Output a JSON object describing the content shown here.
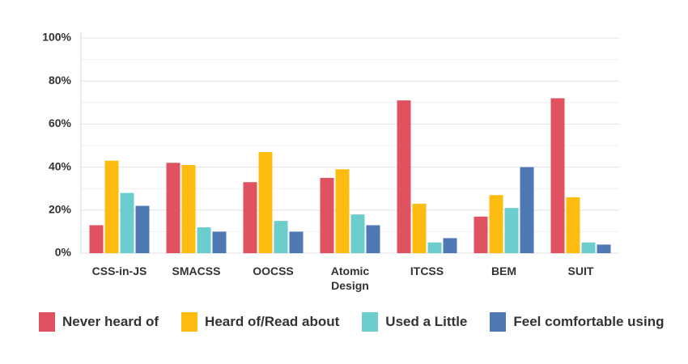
{
  "chart_data": {
    "type": "bar",
    "categories": [
      "CSS-in-JS",
      "SMACSS",
      "OOCSS",
      "Atomic Design",
      "ITCSS",
      "BEM",
      "SUIT"
    ],
    "series": [
      {
        "name": "Never heard of",
        "color": "#e05260",
        "values": [
          13,
          42,
          33,
          35,
          71,
          17,
          72
        ]
      },
      {
        "name": "Heard of/Read about",
        "color": "#fdbd10",
        "values": [
          43,
          41,
          47,
          39,
          23,
          27,
          26
        ]
      },
      {
        "name": "Used a Little",
        "color": "#6bcdcd",
        "values": [
          28,
          12,
          15,
          18,
          5,
          21,
          5
        ]
      },
      {
        "name": "Feel comfortable using",
        "color": "#4f79b5",
        "values": [
          22,
          10,
          10,
          13,
          7,
          40,
          4
        ]
      }
    ],
    "ylim": [
      0,
      100
    ],
    "yticks": [
      {
        "value": 0,
        "label": "0%"
      },
      {
        "value": 20,
        "label": "20%"
      },
      {
        "value": 40,
        "label": "40%"
      },
      {
        "value": 60,
        "label": "60%"
      },
      {
        "value": 80,
        "label": "80%"
      },
      {
        "value": 100,
        "label": "100%"
      }
    ],
    "minor_yticks": [
      10,
      30,
      50,
      70,
      90
    ],
    "grid": true
  }
}
